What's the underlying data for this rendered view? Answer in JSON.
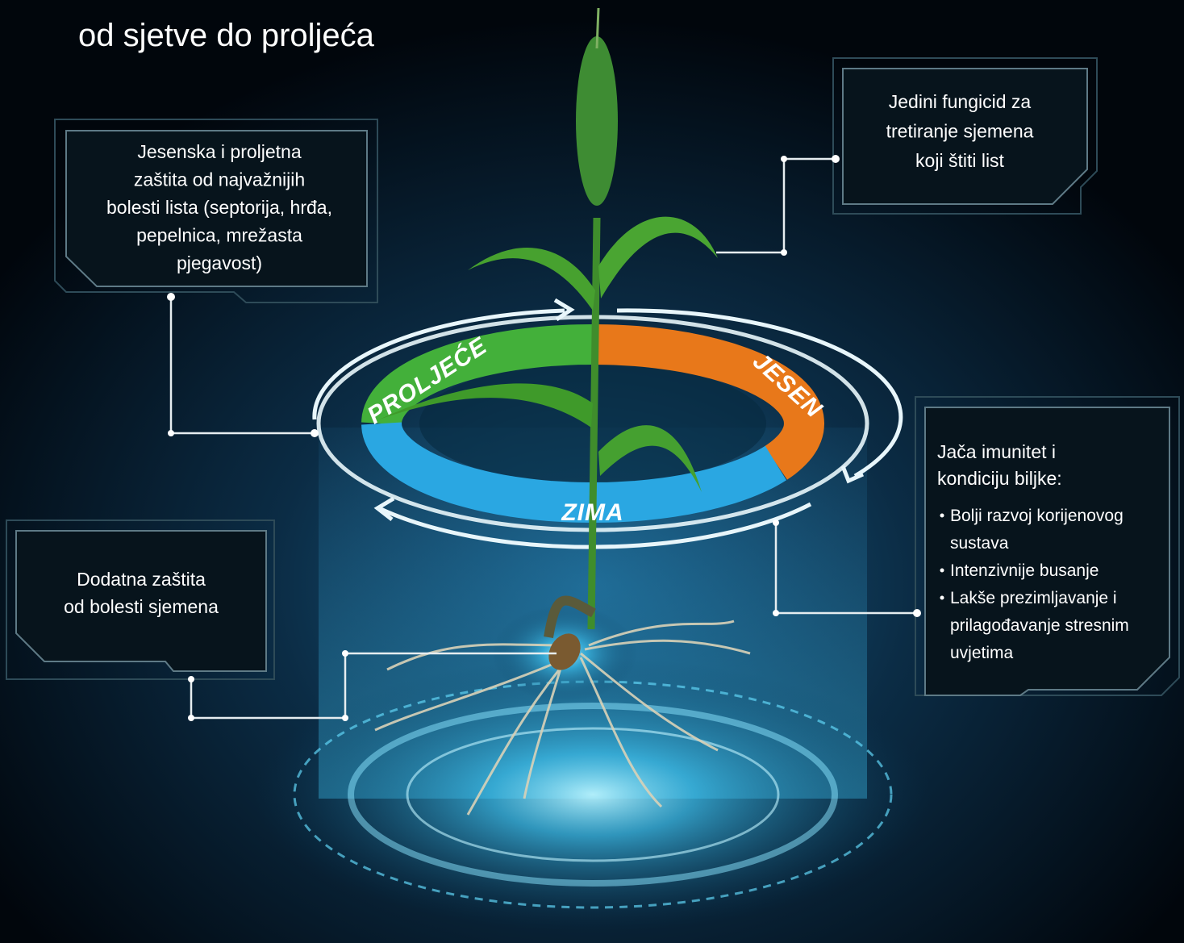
{
  "title": "od sjetve do proljeća",
  "seasons": {
    "spring": "PROLJEĆE",
    "autumn": "JESEN",
    "winter": "ZIMA"
  },
  "callouts": [
    {
      "lines": [
        "Jesenska i proljetna",
        "zaštita od najvažnijih",
        "bolesti lista (septorija, hrđa,",
        "pepelnica, mrežasta",
        "pjegavost)"
      ]
    },
    {
      "lines": [
        "Jedini fungicid za",
        "tretiranje sjemena",
        "koji štiti list"
      ]
    },
    {
      "lines": [
        "Dodatna zaštita",
        "od bolesti sjemena"
      ]
    },
    {
      "heading": [
        "Jača imunitet i",
        "kondiciju biljke:"
      ],
      "bullets": [
        [
          "Bolji razvoj korijenovog",
          "sustava"
        ],
        [
          "Intenzivnije busanje"
        ],
        [
          "Lakše prezimljavanje i",
          "prilagođavanje stresnim",
          "uvjetima"
        ]
      ]
    }
  ]
}
